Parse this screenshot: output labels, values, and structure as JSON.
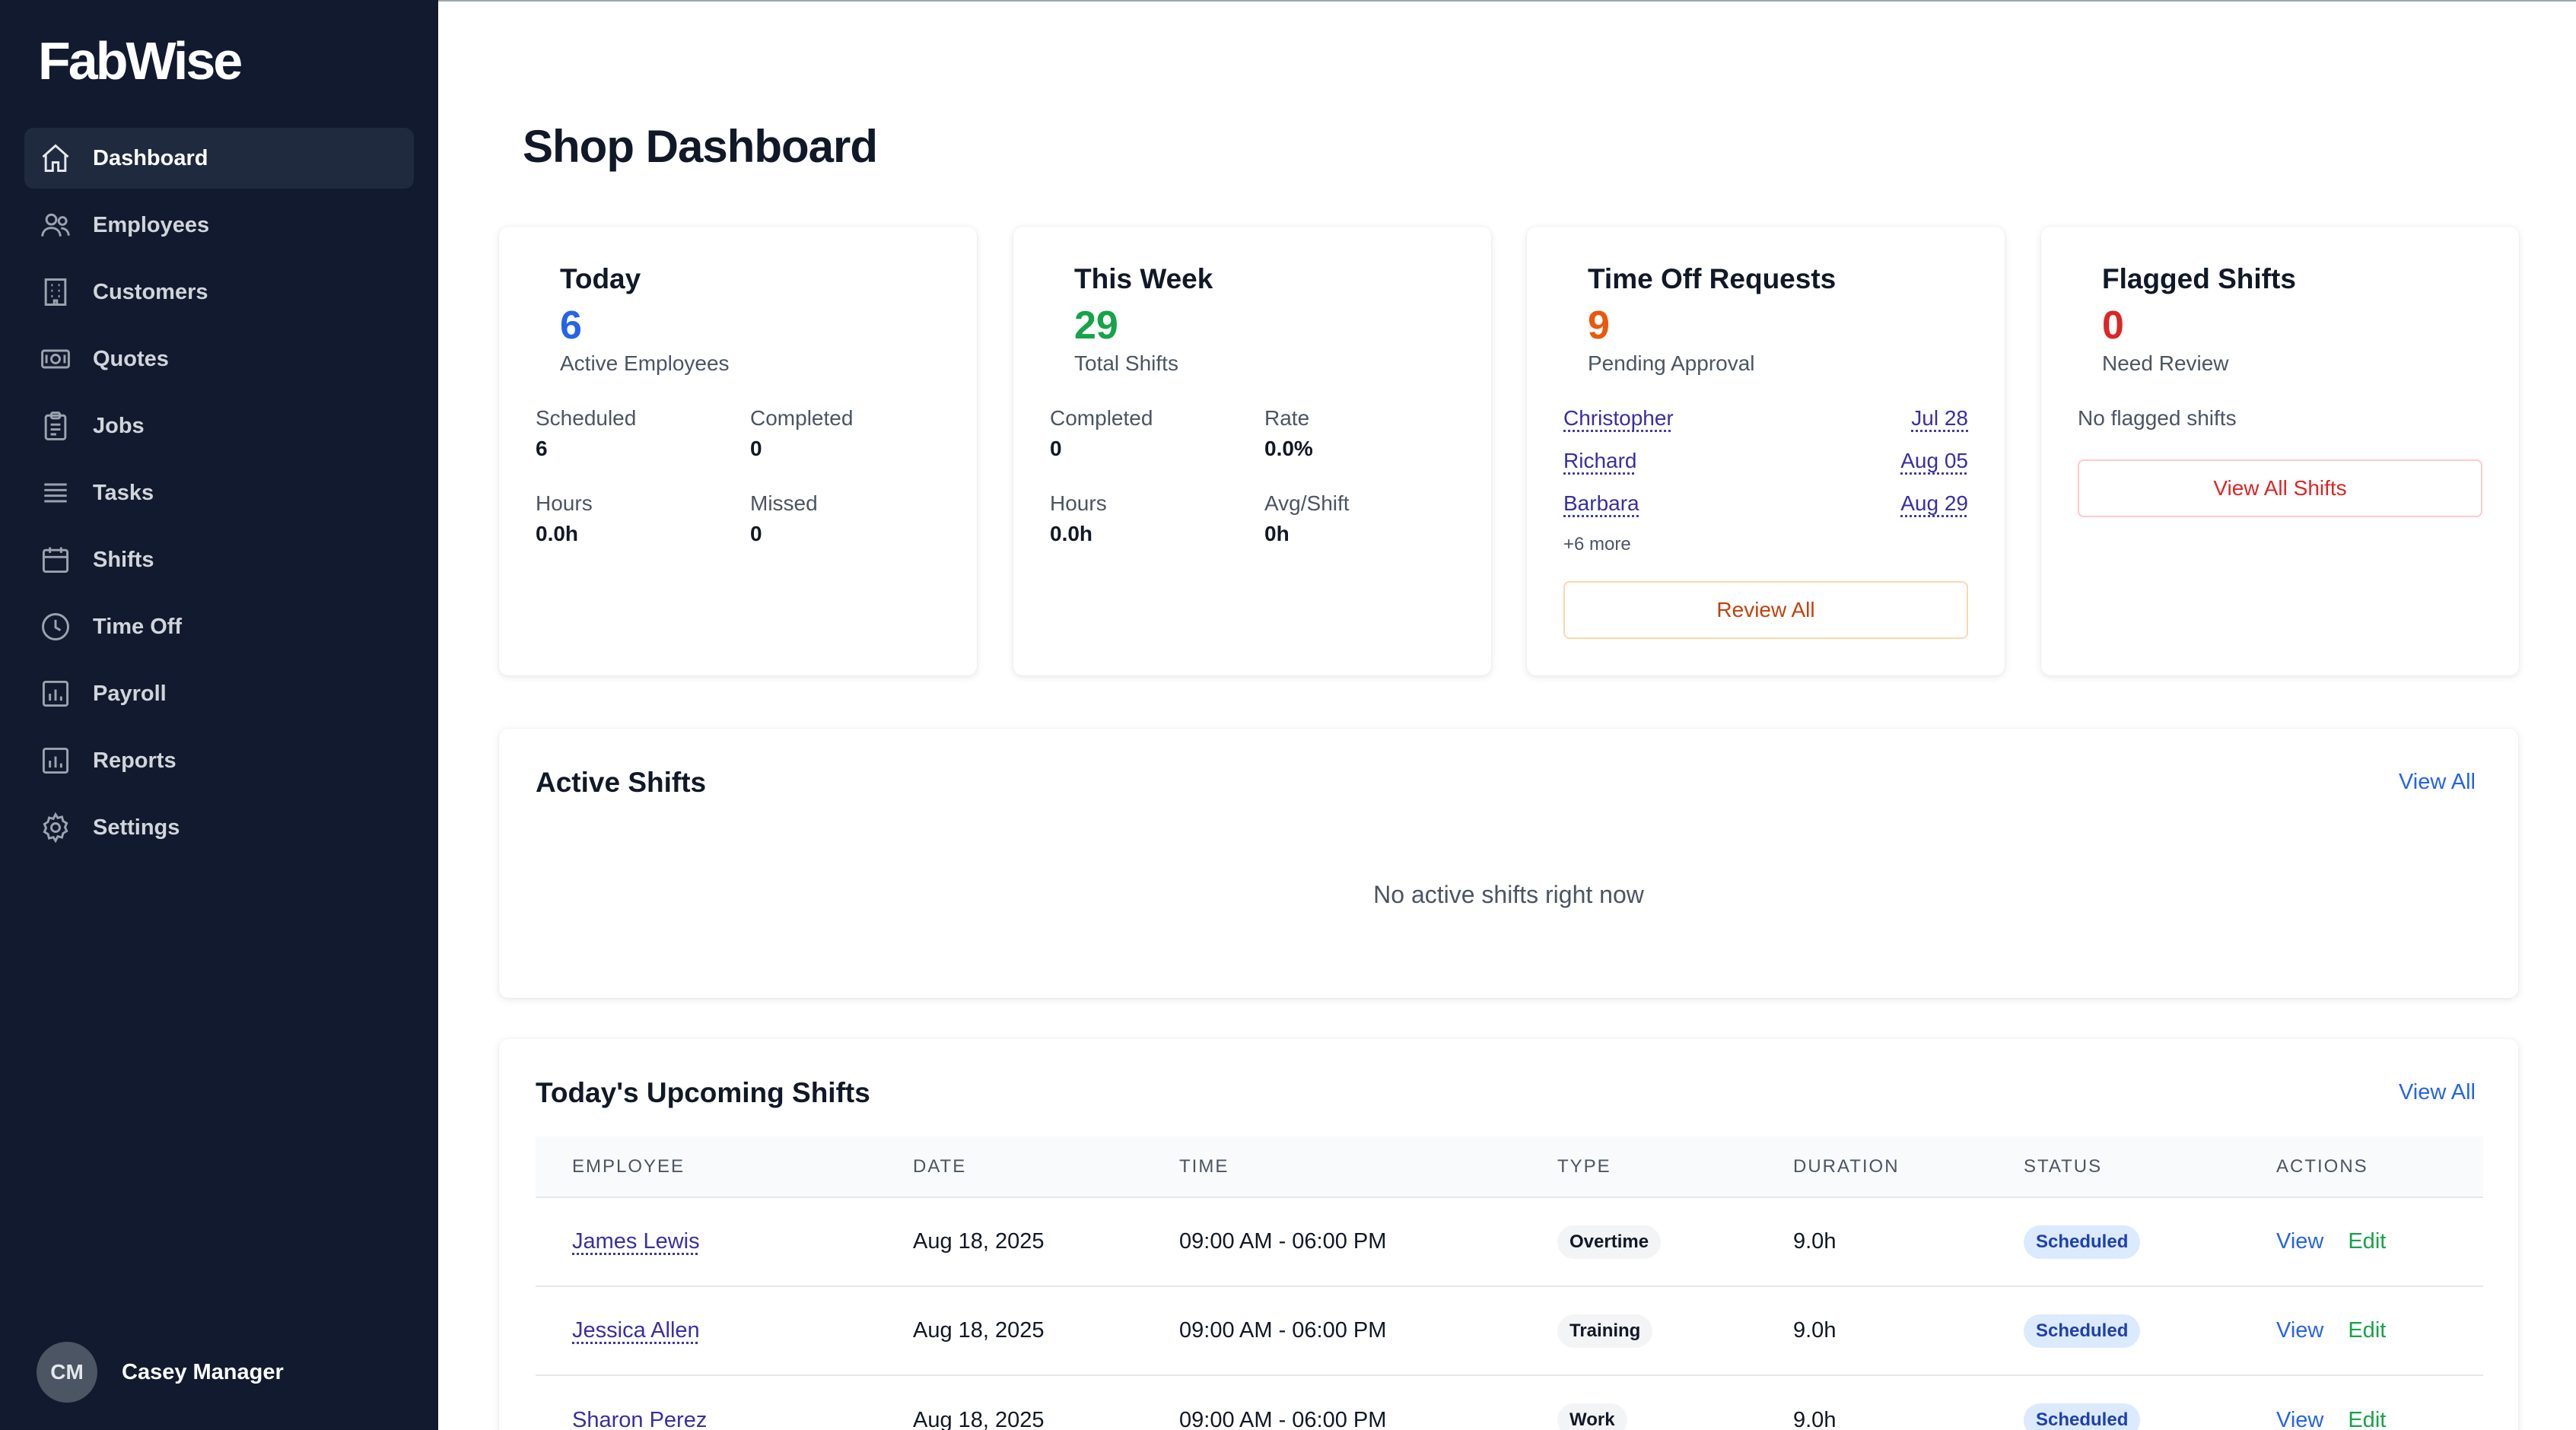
{
  "app": {
    "logo": "FabWise"
  },
  "sidebar": {
    "items": [
      {
        "label": "Dashboard",
        "icon": "home-icon",
        "active": true
      },
      {
        "label": "Employees",
        "icon": "users-icon"
      },
      {
        "label": "Customers",
        "icon": "building-icon"
      },
      {
        "label": "Quotes",
        "icon": "money-icon"
      },
      {
        "label": "Jobs",
        "icon": "clipboard-icon"
      },
      {
        "label": "Tasks",
        "icon": "list-icon"
      },
      {
        "label": "Shifts",
        "icon": "calendar-icon"
      },
      {
        "label": "Time Off",
        "icon": "clock-icon"
      },
      {
        "label": "Payroll",
        "icon": "bar-chart-icon"
      },
      {
        "label": "Reports",
        "icon": "bar-chart-icon"
      },
      {
        "label": "Settings",
        "icon": "gear-icon"
      }
    ],
    "user": {
      "initials": "CM",
      "name": "Casey Manager"
    }
  },
  "main": {
    "title": "Shop Dashboard",
    "today": {
      "title": "Today",
      "value": "6",
      "subtitle": "Active Employees",
      "scheduled_label": "Scheduled",
      "scheduled": "6",
      "completed_label": "Completed",
      "completed": "0",
      "hours_label": "Hours",
      "hours": "0.0h",
      "missed_label": "Missed",
      "missed": "0"
    },
    "week": {
      "title": "This Week",
      "value": "29",
      "subtitle": "Total Shifts",
      "completed_label": "Completed",
      "completed": "0",
      "rate_label": "Rate",
      "rate": "0.0%",
      "hours_label": "Hours",
      "hours": "0.0h",
      "avg_label": "Avg/Shift",
      "avg": "0h"
    },
    "timeoff": {
      "title": "Time Off Requests",
      "value": "9",
      "subtitle": "Pending Approval",
      "requests": [
        {
          "name": "Christopher",
          "date": "Jul 28"
        },
        {
          "name": "Richard",
          "date": "Aug 05"
        },
        {
          "name": "Barbara",
          "date": "Aug 29"
        }
      ],
      "more": "+6 more",
      "button": "Review All"
    },
    "flagged": {
      "title": "Flagged Shifts",
      "value": "0",
      "subtitle": "Need Review",
      "empty": "No flagged shifts",
      "button": "View All Shifts"
    },
    "active_shifts": {
      "title": "Active Shifts",
      "view_all": "View All",
      "empty": "No active shifts right now"
    },
    "upcoming": {
      "title": "Today's Upcoming Shifts",
      "view_all": "View All",
      "columns": [
        "EMPLOYEE",
        "DATE",
        "TIME",
        "TYPE",
        "DURATION",
        "STATUS",
        "ACTIONS"
      ],
      "rows": [
        {
          "employee": "James Lewis",
          "date": "Aug 18, 2025",
          "time": "09:00 AM - 06:00 PM",
          "type": "Overtime",
          "duration": "9.0h",
          "status": "Scheduled",
          "view": "View",
          "edit": "Edit"
        },
        {
          "employee": "Jessica Allen",
          "date": "Aug 18, 2025",
          "time": "09:00 AM - 06:00 PM",
          "type": "Training",
          "duration": "9.0h",
          "status": "Scheduled",
          "view": "View",
          "edit": "Edit"
        },
        {
          "employee": "Sharon Perez",
          "date": "Aug 18, 2025",
          "time": "09:00 AM - 06:00 PM",
          "type": "Work",
          "duration": "9.0h",
          "status": "Scheduled",
          "view": "View",
          "edit": "Edit"
        }
      ]
    }
  }
}
